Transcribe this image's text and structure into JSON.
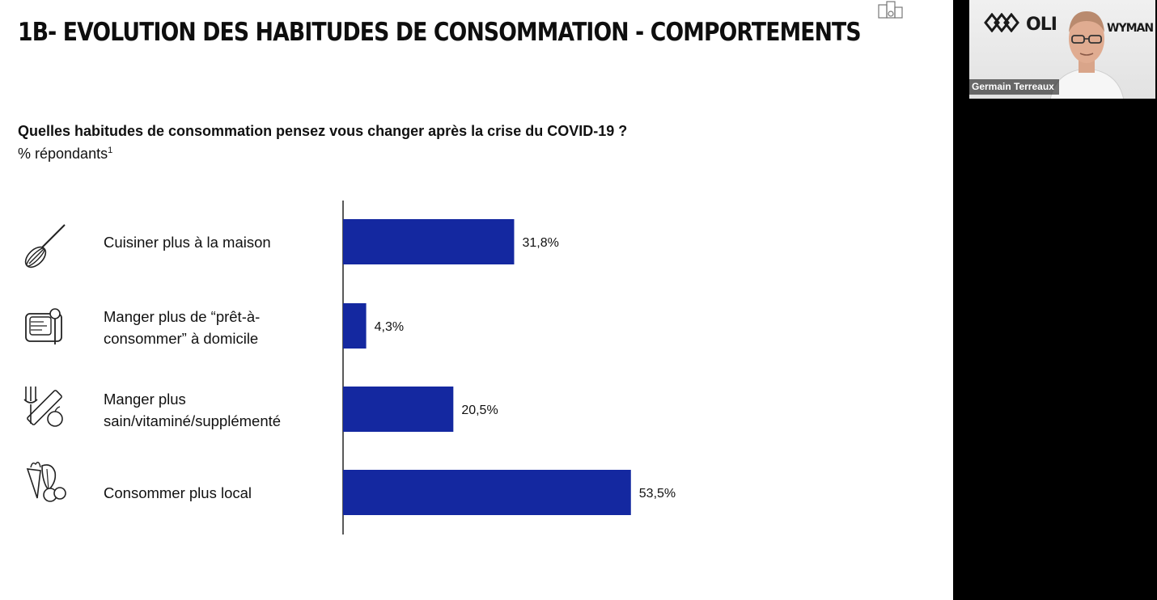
{
  "slide": {
    "title": "1B- EVOLUTION DES HABITUDES DE CONSOMMATION - COMPORTEMENTS",
    "question": "Quelles habitudes de consommation pensez vous changer après la crise du COVID-19 ?",
    "unit": "% répondants",
    "unit_footnote": "1",
    "rows": [
      {
        "label": "Cuisiner plus à la maison",
        "icon": "whisk-icon"
      },
      {
        "label": "Manger plus de “prêt-à-consommer” à domicile",
        "icon": "ready-meal-icon"
      },
      {
        "label": "Manger plus sain/vitaminé/supplémenté",
        "icon": "healthy-food-icon"
      },
      {
        "label": "Consommer plus local",
        "icon": "local-produce-icon"
      }
    ]
  },
  "chart_data": {
    "type": "bar",
    "orientation": "horizontal",
    "categories": [
      "Cuisiner plus à la maison",
      "Manger plus de “prêt-à-consommer” à domicile",
      "Manger plus sain/vitaminé/supplémenté",
      "Consommer plus local"
    ],
    "values": [
      31.8,
      4.3,
      20.5,
      53.5
    ],
    "value_labels": [
      "31,8%",
      "4,3%",
      "20,5%",
      "53,5%"
    ],
    "title": "",
    "xlabel": "",
    "ylabel": "",
    "xlim": [
      0,
      100
    ],
    "bar_color": "#1428a0",
    "grid": false
  },
  "video": {
    "participant_name": "Germain Terreaux",
    "logo_text_left": "OLI",
    "logo_text_right": "WYMAN"
  },
  "colors": {
    "bar": "#1428a0",
    "title": "#0e0e0e",
    "sidebar": "#000000"
  }
}
